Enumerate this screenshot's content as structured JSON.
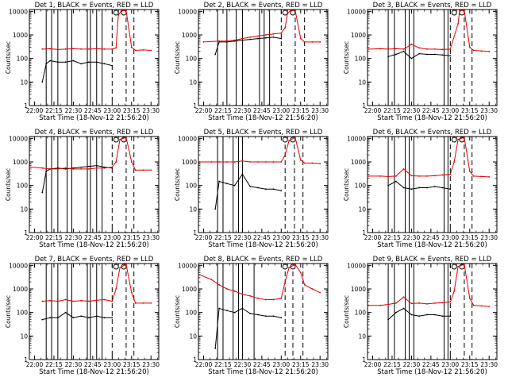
{
  "figure": {
    "xlabel": "Start Time (18-Nov-12 21:56:20)",
    "ylabel": "Counts/sec",
    "xticks": [
      "22:00",
      "22:15",
      "22:30",
      "22:45",
      "23:00",
      "23:15",
      "23:30"
    ],
    "yticks": [
      "1",
      "10",
      "100",
      "1000",
      "10000"
    ],
    "colors": {
      "events": "#000000",
      "lld": "#e00000"
    }
  },
  "chart_data": [
    {
      "type": "line",
      "title": "Det 1, BLACK = Events, RED = LLD",
      "xlim": [
        21.9333,
        23.6
      ],
      "ylim": [
        1,
        12000
      ],
      "yscale": "log",
      "grid": false,
      "x_hours": [
        22.1,
        22.2,
        22.3,
        22.4,
        22.5,
        22.6,
        22.7,
        22.8,
        22.9,
        23.0,
        23.05,
        23.08,
        23.12,
        23.18,
        23.25,
        23.3,
        23.4,
        23.5
      ],
      "series": [
        {
          "name": "Events",
          "x_hours": [
            22.1,
            22.15,
            22.2,
            22.3,
            22.4,
            22.5,
            22.6,
            22.7,
            22.8,
            22.9,
            23.0
          ],
          "values": [
            10,
            60,
            80,
            70,
            70,
            80,
            60,
            70,
            70,
            60,
            50
          ]
        },
        {
          "name": "LLD",
          "values": [
            250,
            260,
            240,
            250,
            260,
            250,
            250,
            260,
            250,
            250,
            280,
            7000,
            11000,
            11000,
            300,
            220,
            230,
            220
          ]
        }
      ],
      "markers_x": [
        22.15,
        22.22,
        22.3,
        22.42,
        22.48,
        22.68,
        22.72,
        22.8,
        22.87
      ],
      "dashed_x": [
        23.0,
        23.18,
        23.28
      ],
      "arcs_x": [
        23.05,
        23.15
      ]
    },
    {
      "type": "line",
      "title": "Det 2, BLACK = Events, RED = LLD",
      "xlim": [
        21.9333,
        23.6
      ],
      "ylim": [
        1,
        12000
      ],
      "yscale": "log",
      "grid": false,
      "x_hours": [
        22.0,
        22.2,
        22.3,
        22.4,
        22.5,
        22.6,
        22.7,
        22.8,
        22.9,
        23.0,
        23.05,
        23.08,
        23.12,
        23.18,
        23.25,
        23.3,
        23.4,
        23.5
      ],
      "series": [
        {
          "name": "Events",
          "x_hours": [
            22.15,
            22.2,
            22.3,
            22.4,
            22.5,
            22.6,
            22.7,
            22.8,
            22.9,
            23.0
          ],
          "values": [
            150,
            500,
            500,
            550,
            600,
            650,
            700,
            750,
            800,
            700
          ]
        },
        {
          "name": "LLD",
          "values": [
            500,
            550,
            550,
            600,
            700,
            800,
            900,
            1000,
            1100,
            1200,
            2000,
            8000,
            11000,
            11000,
            700,
            500,
            500,
            500
          ]
        }
      ],
      "markers_x": [
        22.18,
        22.3,
        22.42,
        22.5,
        22.72,
        22.78,
        22.85
      ],
      "dashed_x": [
        23.0,
        23.18,
        23.3
      ],
      "arcs_x": [
        23.05,
        23.15
      ]
    },
    {
      "type": "line",
      "title": "Det 3, BLACK = Events, RED = LLD",
      "xlim": [
        21.9333,
        23.6
      ],
      "ylim": [
        1,
        12000
      ],
      "yscale": "log",
      "grid": false,
      "x_hours": [
        21.95,
        22.1,
        22.2,
        22.3,
        22.4,
        22.5,
        22.6,
        22.7,
        22.8,
        22.9,
        23.0,
        23.1,
        23.12,
        23.18,
        23.25,
        23.3,
        23.4,
        23.5
      ],
      "series": [
        {
          "name": "Events",
          "x_hours": [
            22.2,
            22.3,
            22.4,
            22.5,
            22.6,
            22.7,
            22.8,
            22.9,
            23.0
          ],
          "values": [
            120,
            150,
            200,
            100,
            160,
            150,
            150,
            140,
            130
          ]
        },
        {
          "name": "LLD",
          "values": [
            250,
            260,
            250,
            260,
            250,
            400,
            280,
            250,
            250,
            240,
            250,
            3000,
            11000,
            11000,
            300,
            220,
            210,
            200
          ]
        }
      ],
      "markers_x": [
        22.2,
        22.28,
        22.42,
        22.47,
        22.53,
        22.92,
        22.97
      ],
      "dashed_x": [
        23.0,
        23.18,
        23.28
      ],
      "arcs_x": [
        23.05,
        23.15
      ]
    },
    {
      "type": "line",
      "title": "Det 4, BLACK = Events, RED = LLD",
      "xlim": [
        21.9333,
        23.6
      ],
      "ylim": [
        1,
        12000
      ],
      "yscale": "log",
      "grid": false,
      "x_hours": [
        21.95,
        22.1,
        22.2,
        22.3,
        22.4,
        22.5,
        22.6,
        22.7,
        22.8,
        22.9,
        23.0,
        23.05,
        23.1,
        23.18,
        23.25,
        23.3,
        23.4,
        23.5
      ],
      "series": [
        {
          "name": "Events",
          "x_hours": [
            22.1,
            22.15,
            22.2,
            22.3,
            22.4,
            22.5,
            22.6,
            22.7,
            22.8,
            22.9,
            23.0
          ],
          "values": [
            50,
            400,
            500,
            550,
            500,
            550,
            600,
            650,
            700,
            600,
            550
          ]
        },
        {
          "name": "LLD",
          "values": [
            600,
            550,
            500,
            500,
            550,
            500,
            500,
            500,
            550,
            550,
            600,
            1000,
            9000,
            11000,
            1000,
            450,
            450,
            450
          ]
        }
      ],
      "markers_x": [
        22.15,
        22.22,
        22.3,
        22.42,
        22.48,
        22.68,
        22.72,
        22.8,
        22.87
      ],
      "dashed_x": [
        23.0,
        23.18,
        23.28
      ],
      "arcs_x": [
        23.05,
        23.15
      ]
    },
    {
      "type": "line",
      "title": "Det 5, BLACK = Events, RED = LLD",
      "xlim": [
        21.9333,
        23.6
      ],
      "ylim": [
        1,
        12000
      ],
      "yscale": "log",
      "grid": false,
      "x_hours": [
        21.95,
        22.1,
        22.2,
        22.3,
        22.4,
        22.5,
        22.6,
        22.7,
        22.8,
        22.9,
        23.0,
        23.05,
        23.1,
        23.18,
        23.25,
        23.3,
        23.4,
        23.5
      ],
      "series": [
        {
          "name": "Events",
          "x_hours": [
            22.15,
            22.2,
            22.3,
            22.4,
            22.5,
            22.6,
            22.7,
            22.8,
            22.9,
            23.0
          ],
          "values": [
            10,
            150,
            120,
            100,
            300,
            90,
            80,
            70,
            70,
            60
          ]
        },
        {
          "name": "LLD",
          "values": [
            1000,
            1000,
            1000,
            1000,
            1000,
            1100,
            1000,
            1000,
            1000,
            1000,
            1000,
            2000,
            8000,
            11000,
            1200,
            900,
            900,
            850
          ]
        }
      ],
      "markers_x": [
        22.18,
        22.25,
        22.38,
        22.45,
        22.5
      ],
      "dashed_x": [
        23.05,
        23.17,
        23.28
      ],
      "arcs_x": [
        23.05,
        23.15
      ]
    },
    {
      "type": "line",
      "title": "Det 6, BLACK = Events, RED = LLD",
      "xlim": [
        21.9333,
        23.6
      ],
      "ylim": [
        1,
        12000
      ],
      "yscale": "log",
      "grid": false,
      "x_hours": [
        21.95,
        22.1,
        22.2,
        22.3,
        22.4,
        22.5,
        22.6,
        22.7,
        22.8,
        22.9,
        23.0,
        23.05,
        23.1,
        23.18,
        23.25,
        23.3,
        23.4,
        23.5
      ],
      "series": [
        {
          "name": "Events",
          "x_hours": [
            22.2,
            22.3,
            22.4,
            22.5,
            22.6,
            22.7,
            22.8,
            22.9,
            23.0
          ],
          "values": [
            100,
            150,
            80,
            70,
            80,
            80,
            90,
            80,
            70
          ]
        },
        {
          "name": "LLD",
          "values": [
            250,
            250,
            240,
            250,
            500,
            260,
            250,
            250,
            260,
            280,
            300,
            1000,
            9000,
            11000,
            400,
            250,
            240,
            230
          ]
        }
      ],
      "markers_x": [
        22.2,
        22.28,
        22.42,
        22.47,
        22.53,
        22.92,
        22.97
      ],
      "dashed_x": [
        23.0,
        23.18,
        23.28
      ],
      "arcs_x": [
        23.05,
        23.15
      ]
    },
    {
      "type": "line",
      "title": "Det 7, BLACK = Events, RED = LLD",
      "xlim": [
        21.9333,
        23.6
      ],
      "ylim": [
        1,
        12000
      ],
      "yscale": "log",
      "grid": false,
      "x_hours": [
        22.1,
        22.2,
        22.3,
        22.4,
        22.5,
        22.6,
        22.7,
        22.8,
        22.9,
        23.0,
        23.05,
        23.1,
        23.18,
        23.25,
        23.3,
        23.4,
        23.5
      ],
      "series": [
        {
          "name": "Events",
          "x_hours": [
            22.1,
            22.2,
            22.3,
            22.4,
            22.5,
            22.6,
            22.7,
            22.8,
            22.9,
            23.0
          ],
          "values": [
            50,
            60,
            60,
            100,
            60,
            70,
            60,
            70,
            60,
            60
          ]
        },
        {
          "name": "LLD",
          "values": [
            300,
            320,
            300,
            350,
            300,
            320,
            300,
            330,
            350,
            300,
            1000,
            8000,
            11000,
            700,
            250,
            250,
            250
          ]
        }
      ],
      "markers_x": [
        22.15,
        22.22,
        22.3,
        22.42,
        22.48,
        22.68,
        22.72,
        22.8,
        22.87
      ],
      "dashed_x": [
        23.0,
        23.18,
        23.28
      ],
      "arcs_x": [
        23.05,
        23.15
      ]
    },
    {
      "type": "line",
      "title": "Det 8, BLACK = Events, RED = LLD",
      "xlim": [
        21.9333,
        23.6
      ],
      "ylim": [
        1,
        12000
      ],
      "yscale": "log",
      "grid": false,
      "x_hours": [
        21.95,
        22.1,
        22.2,
        22.3,
        22.4,
        22.5,
        22.6,
        22.7,
        22.8,
        22.9,
        23.0,
        23.05,
        23.1,
        23.18,
        23.25,
        23.3,
        23.4,
        23.5
      ],
      "series": [
        {
          "name": "Events",
          "x_hours": [
            22.15,
            22.2,
            22.3,
            22.4,
            22.5,
            22.6,
            22.7,
            22.8,
            22.9,
            23.0
          ],
          "values": [
            3,
            150,
            120,
            100,
            150,
            90,
            80,
            70,
            70,
            60
          ]
        },
        {
          "name": "LLD",
          "values": [
            4000,
            2500,
            1500,
            1000,
            800,
            600,
            500,
            400,
            350,
            350,
            400,
            2000,
            8000,
            11000,
            5000,
            1500,
            1000,
            700
          ]
        }
      ],
      "markers_x": [
        22.18,
        22.25,
        22.38,
        22.45,
        22.5,
        22.65
      ],
      "dashed_x": [
        23.05,
        23.15,
        23.28
      ],
      "arcs_x": [
        23.05,
        23.15
      ]
    },
    {
      "type": "line",
      "title": "Det 9, BLACK = Events, RED = LLD",
      "xlim": [
        21.9333,
        23.6
      ],
      "ylim": [
        1,
        12000
      ],
      "yscale": "log",
      "grid": false,
      "x_hours": [
        21.95,
        22.1,
        22.2,
        22.3,
        22.4,
        22.5,
        22.6,
        22.7,
        22.8,
        22.9,
        23.0,
        23.05,
        23.1,
        23.18,
        23.25,
        23.3,
        23.4,
        23.5
      ],
      "series": [
        {
          "name": "Events",
          "x_hours": [
            22.2,
            22.3,
            22.4,
            22.5,
            22.6,
            22.7,
            22.8,
            22.9,
            23.0
          ],
          "values": [
            50,
            100,
            150,
            80,
            70,
            80,
            80,
            70,
            70
          ]
        },
        {
          "name": "LLD",
          "values": [
            200,
            200,
            220,
            250,
            450,
            240,
            250,
            230,
            250,
            260,
            280,
            800,
            9000,
            11000,
            400,
            200,
            190,
            180
          ]
        }
      ],
      "markers_x": [
        22.2,
        22.28,
        22.42,
        22.47,
        22.53,
        22.92,
        22.97
      ],
      "dashed_x": [
        23.0,
        23.18,
        23.28
      ],
      "arcs_x": [
        23.05,
        23.15
      ]
    }
  ]
}
